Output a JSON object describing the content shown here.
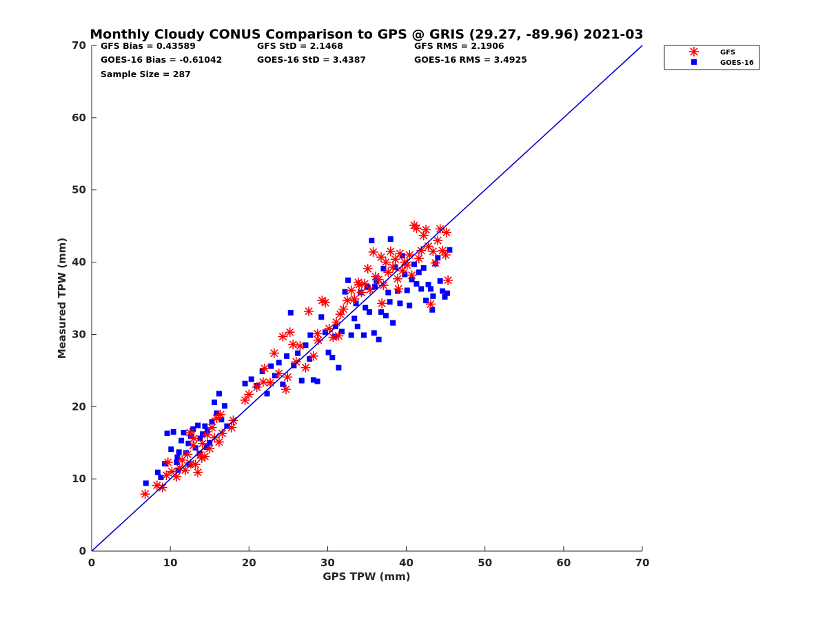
{
  "chart_data": {
    "type": "scatter",
    "title": "Monthly Cloudy CONUS Comparison to GPS @ GRIS (29.27, -89.96) 2021-03",
    "xlabel": "GPS TPW (mm)",
    "ylabel": "Measured TPW (mm)",
    "xlim": [
      0,
      70
    ],
    "ylim": [
      0,
      70
    ],
    "xticks": [
      "0",
      "10",
      "20",
      "30",
      "40",
      "50",
      "60",
      "70"
    ],
    "yticks": [
      "0",
      "10",
      "20",
      "30",
      "40",
      "50",
      "60",
      "70"
    ],
    "grid": false,
    "legend_position": "top-right",
    "stats": {
      "gfs_bias": "GFS Bias = 0.43589",
      "gfs_std": "GFS StD = 2.1468",
      "gfs_rms": "GFS RMS = 2.1906",
      "goes_bias": "GOES-16 Bias = -0.61042",
      "goes_std": "GOES-16 StD = 3.4387",
      "goes_rms": "GOES-16 RMS = 3.4925",
      "sample_size": "Sample Size = 287"
    },
    "reference_line": {
      "from": [
        0,
        0
      ],
      "to": [
        70,
        70
      ],
      "color": "#0000cc"
    },
    "series": [
      {
        "name": "GFS",
        "marker": "asterisk",
        "color": "#ff0000",
        "points": [
          [
            6.8,
            7.9
          ],
          [
            8.3,
            9.1
          ],
          [
            9.0,
            8.8
          ],
          [
            9.5,
            10.5
          ],
          [
            9.7,
            12.3
          ],
          [
            10.2,
            11.0
          ],
          [
            10.8,
            10.3
          ],
          [
            11.2,
            11.5
          ],
          [
            11.5,
            12.6
          ],
          [
            11.9,
            11.2
          ],
          [
            12.2,
            13.4
          ],
          [
            12.6,
            12.1
          ],
          [
            12.9,
            14.6
          ],
          [
            13.2,
            12.0
          ],
          [
            13.5,
            10.9
          ],
          [
            13.8,
            13.3
          ],
          [
            14.1,
            14.9
          ],
          [
            14.4,
            13.1
          ],
          [
            14.7,
            16.1
          ],
          [
            15.0,
            14.2
          ],
          [
            15.3,
            17.1
          ],
          [
            15.6,
            15.7
          ],
          [
            15.9,
            18.4
          ],
          [
            16.2,
            15.1
          ],
          [
            16.6,
            16.3
          ],
          [
            17.8,
            17.1
          ],
          [
            18.0,
            18.1
          ],
          [
            12.5,
            16.4
          ],
          [
            13.0,
            15.6
          ],
          [
            14.0,
            12.9
          ],
          [
            16.4,
            18.9
          ],
          [
            19.5,
            20.9
          ],
          [
            20.0,
            21.7
          ],
          [
            21.0,
            22.7
          ],
          [
            21.8,
            23.4
          ],
          [
            22.0,
            25.3
          ],
          [
            22.7,
            23.3
          ],
          [
            23.2,
            27.4
          ],
          [
            23.8,
            24.6
          ],
          [
            24.3,
            29.7
          ],
          [
            24.7,
            22.4
          ],
          [
            25.2,
            30.3
          ],
          [
            25.6,
            28.6
          ],
          [
            26.0,
            26.2
          ],
          [
            26.5,
            28.4
          ],
          [
            27.2,
            25.4
          ],
          [
            27.6,
            33.2
          ],
          [
            28.2,
            27.0
          ],
          [
            28.7,
            30.1
          ],
          [
            29.3,
            34.7
          ],
          [
            29.7,
            34.4
          ],
          [
            30.2,
            30.8
          ],
          [
            30.7,
            29.6
          ],
          [
            31.1,
            31.7
          ],
          [
            31.6,
            32.8
          ],
          [
            32.0,
            33.5
          ],
          [
            32.5,
            34.7
          ],
          [
            33.0,
            36.1
          ],
          [
            33.4,
            34.9
          ],
          [
            33.9,
            37.2
          ],
          [
            34.3,
            35.8
          ],
          [
            34.7,
            37.0
          ],
          [
            35.1,
            39.1
          ],
          [
            35.4,
            36.2
          ],
          [
            35.8,
            41.4
          ],
          [
            36.1,
            38.0
          ],
          [
            36.5,
            37.6
          ],
          [
            36.8,
            40.7
          ],
          [
            37.1,
            36.8
          ],
          [
            37.4,
            40.0
          ],
          [
            37.7,
            38.6
          ],
          [
            38.0,
            41.5
          ],
          [
            38.3,
            39.3
          ],
          [
            38.6,
            40.4
          ],
          [
            38.9,
            37.7
          ],
          [
            39.2,
            41.2
          ],
          [
            39.5,
            38.8
          ],
          [
            39.8,
            40.0
          ],
          [
            40.1,
            39.6
          ],
          [
            40.4,
            41.0
          ],
          [
            40.7,
            38.2
          ],
          [
            41.0,
            45.1
          ],
          [
            41.3,
            44.7
          ],
          [
            41.6,
            40.5
          ],
          [
            41.9,
            41.6
          ],
          [
            42.2,
            43.7
          ],
          [
            42.5,
            44.5
          ],
          [
            42.8,
            42.2
          ],
          [
            43.1,
            34.2
          ],
          [
            43.4,
            41.5
          ],
          [
            43.7,
            39.9
          ],
          [
            44.0,
            43.0
          ],
          [
            44.3,
            44.6
          ],
          [
            44.6,
            41.6
          ],
          [
            45.0,
            41.0
          ],
          [
            45.3,
            37.5
          ],
          [
            45.1,
            44.1
          ],
          [
            34.0,
            36.9
          ],
          [
            36.9,
            34.3
          ],
          [
            39.0,
            36.3
          ],
          [
            31.4,
            29.8
          ],
          [
            28.8,
            29.2
          ],
          [
            24.9,
            24.1
          ]
        ]
      },
      {
        "name": "GOES-16",
        "marker": "square",
        "color": "#0000ff",
        "points": [
          [
            6.9,
            9.4
          ],
          [
            8.4,
            10.9
          ],
          [
            8.8,
            10.2
          ],
          [
            9.3,
            12.1
          ],
          [
            9.6,
            16.3
          ],
          [
            10.1,
            14.1
          ],
          [
            10.4,
            16.5
          ],
          [
            10.8,
            12.3
          ],
          [
            11.1,
            13.7
          ],
          [
            11.4,
            15.3
          ],
          [
            11.7,
            16.4
          ],
          [
            12.0,
            13.6
          ],
          [
            12.3,
            14.9
          ],
          [
            12.6,
            15.9
          ],
          [
            12.9,
            16.9
          ],
          [
            13.2,
            14.3
          ],
          [
            13.5,
            17.4
          ],
          [
            13.8,
            15.6
          ],
          [
            14.1,
            16.2
          ],
          [
            14.4,
            17.3
          ],
          [
            14.7,
            16.6
          ],
          [
            15.0,
            15.0
          ],
          [
            15.3,
            17.9
          ],
          [
            15.6,
            20.6
          ],
          [
            15.9,
            19.1
          ],
          [
            16.2,
            21.8
          ],
          [
            16.5,
            18.2
          ],
          [
            16.9,
            20.1
          ],
          [
            17.2,
            17.3
          ],
          [
            11.0,
            11.2
          ],
          [
            12.4,
            12.0
          ],
          [
            10.9,
            13.0
          ],
          [
            13.7,
            13.5
          ],
          [
            14.6,
            14.4
          ],
          [
            19.5,
            23.2
          ],
          [
            20.3,
            23.8
          ],
          [
            21.0,
            22.9
          ],
          [
            21.7,
            24.9
          ],
          [
            22.3,
            21.8
          ],
          [
            22.8,
            25.6
          ],
          [
            23.3,
            24.3
          ],
          [
            23.8,
            26.1
          ],
          [
            24.3,
            23.1
          ],
          [
            24.8,
            27.0
          ],
          [
            25.3,
            33.0
          ],
          [
            25.7,
            25.7
          ],
          [
            26.2,
            27.4
          ],
          [
            26.7,
            23.6
          ],
          [
            27.2,
            28.5
          ],
          [
            27.7,
            26.6
          ],
          [
            28.2,
            23.7
          ],
          [
            28.7,
            23.5
          ],
          [
            29.2,
            32.4
          ],
          [
            29.7,
            30.3
          ],
          [
            30.1,
            27.5
          ],
          [
            30.6,
            26.8
          ],
          [
            31.0,
            31.1
          ],
          [
            31.4,
            25.4
          ],
          [
            31.8,
            30.4
          ],
          [
            32.2,
            35.9
          ],
          [
            32.6,
            37.5
          ],
          [
            33.0,
            29.9
          ],
          [
            33.4,
            32.2
          ],
          [
            33.8,
            31.1
          ],
          [
            34.2,
            35.8
          ],
          [
            34.6,
            29.9
          ],
          [
            35.0,
            36.6
          ],
          [
            35.3,
            33.1
          ],
          [
            35.6,
            43.0
          ],
          [
            35.9,
            30.2
          ],
          [
            36.2,
            37.4
          ],
          [
            36.5,
            29.3
          ],
          [
            36.8,
            33.1
          ],
          [
            37.1,
            39.1
          ],
          [
            37.4,
            32.6
          ],
          [
            37.7,
            35.8
          ],
          [
            38.0,
            43.2
          ],
          [
            38.3,
            31.6
          ],
          [
            38.6,
            39.3
          ],
          [
            38.9,
            36.0
          ],
          [
            39.2,
            34.3
          ],
          [
            39.5,
            40.9
          ],
          [
            39.8,
            38.3
          ],
          [
            40.1,
            36.1
          ],
          [
            40.4,
            34.0
          ],
          [
            40.7,
            37.6
          ],
          [
            41.0,
            39.7
          ],
          [
            41.3,
            37.0
          ],
          [
            41.6,
            38.6
          ],
          [
            41.9,
            36.3
          ],
          [
            42.2,
            39.2
          ],
          [
            42.5,
            34.7
          ],
          [
            42.8,
            36.9
          ],
          [
            43.1,
            36.3
          ],
          [
            43.4,
            35.3
          ],
          [
            43.7,
            39.8
          ],
          [
            44.0,
            40.6
          ],
          [
            44.3,
            37.4
          ],
          [
            44.6,
            36.0
          ],
          [
            44.9,
            35.2
          ],
          [
            45.2,
            35.7
          ],
          [
            45.5,
            41.7
          ],
          [
            43.3,
            33.4
          ],
          [
            34.8,
            33.7
          ],
          [
            37.9,
            34.5
          ],
          [
            36.0,
            36.6
          ],
          [
            33.6,
            34.3
          ],
          [
            30.9,
            29.7
          ],
          [
            27.8,
            29.9
          ]
        ]
      }
    ]
  }
}
